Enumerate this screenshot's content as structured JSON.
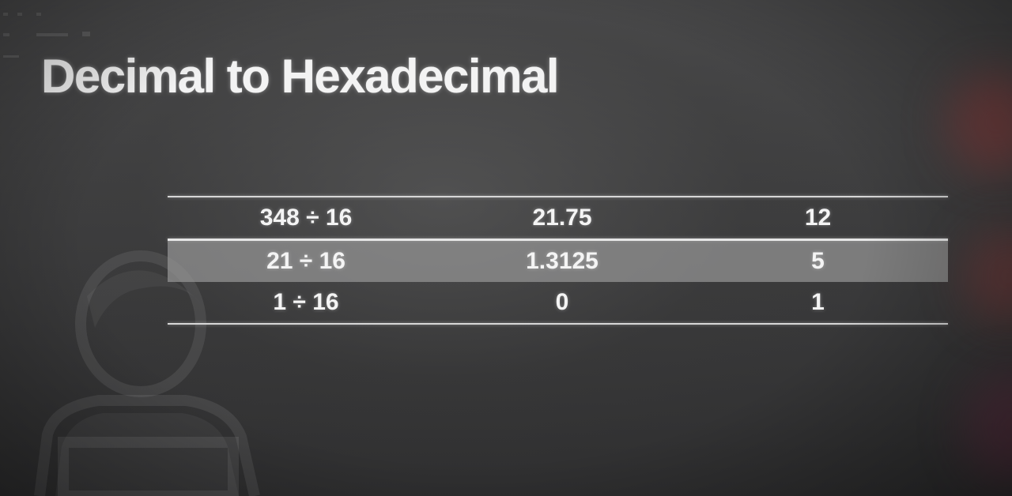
{
  "slide": {
    "title": "Decimal to Hexadecimal"
  },
  "table": {
    "rows": [
      {
        "division": "348 ÷ 16",
        "quotient": "21.75",
        "remainder": "12"
      },
      {
        "division": "21 ÷ 16",
        "quotient": "1.3125",
        "remainder": "5"
      },
      {
        "division": "1 ÷ 16",
        "quotient": "0",
        "remainder": "1"
      }
    ]
  },
  "colors": {
    "background": "#3e3e3f",
    "text": "#f3f3f3",
    "row_shade": "#969696",
    "accent_glow": "#963c3c"
  },
  "icons": {
    "background_figure": "person-silhouette-icon"
  }
}
